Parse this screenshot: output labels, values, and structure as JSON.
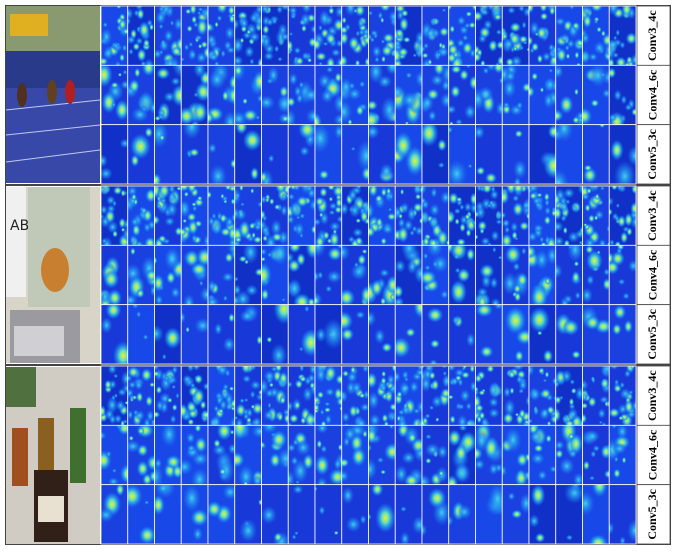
{
  "groups": [
    {
      "labels": [
        "Conv3_4c",
        "Conv4_6c",
        "Conv5_3c"
      ]
    },
    {
      "labels": [
        "Conv3_4c",
        "Conv4_6c",
        "Conv5_3c"
      ]
    },
    {
      "labels": [
        "Conv3_4c",
        "Conv4_6c",
        "Conv5_3c"
      ]
    }
  ]
}
